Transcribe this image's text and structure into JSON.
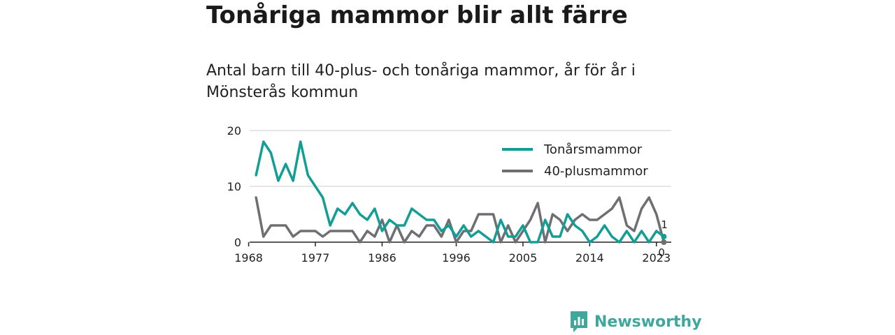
{
  "title": "Tonåriga mammor blir allt färre",
  "subtitle": "Antal barn till 40-plus- och tonåriga mammor, år för år i Mönsterås kommun",
  "brand": {
    "name": "Newsworthy",
    "icon": "newsworthy-logo-icon"
  },
  "colors": {
    "teen": "#139e95",
    "forty": "#6e6e73",
    "grid": "#dddddd",
    "axis": "#222222"
  },
  "chart_data": {
    "type": "line",
    "x_start": 1969,
    "x_end": 2024,
    "xlim": [
      1967,
      2025
    ],
    "ylim": [
      0,
      20
    ],
    "y_ticks": [
      0,
      10,
      20
    ],
    "x_ticks": [
      "1968",
      "1977",
      "1986",
      "1996",
      "2005",
      "2014",
      "2023"
    ],
    "x_tick_years": [
      1968,
      1977,
      1986,
      1996,
      2005,
      2014,
      2023
    ],
    "legend_position": "top-right",
    "grid": true,
    "series": [
      {
        "name": "Tonårsmammor",
        "color": "#139e95",
        "end_label": "1",
        "values": [
          12,
          18,
          16,
          11,
          14,
          11,
          18,
          12,
          10,
          8,
          3,
          6,
          5,
          7,
          5,
          4,
          6,
          2,
          4,
          3,
          3,
          6,
          5,
          4,
          4,
          2,
          3,
          1,
          3,
          1,
          2,
          1,
          0,
          4,
          1,
          1,
          3,
          0,
          0,
          4,
          1,
          1,
          5,
          3,
          2,
          0,
          1,
          3,
          1,
          0,
          2,
          0,
          2,
          0,
          2,
          1
        ]
      },
      {
        "name": "40-plusmammor",
        "color": "#6e6e73",
        "end_label": "0",
        "values": [
          8,
          1,
          3,
          3,
          3,
          1,
          2,
          2,
          2,
          1,
          2,
          2,
          2,
          2,
          0,
          2,
          1,
          4,
          0,
          3,
          0,
          2,
          1,
          3,
          3,
          1,
          4,
          0,
          2,
          2,
          5,
          5,
          5,
          0,
          3,
          0,
          2,
          4,
          7,
          0,
          5,
          4,
          2,
          4,
          5,
          4,
          4,
          5,
          6,
          8,
          3,
          2,
          6,
          8,
          5,
          0
        ]
      }
    ]
  }
}
